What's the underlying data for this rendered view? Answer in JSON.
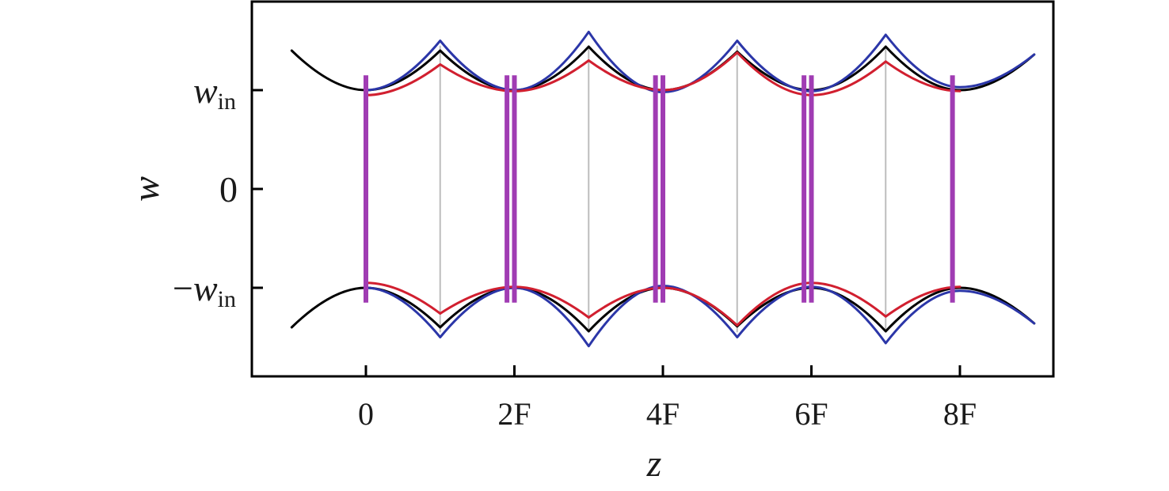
{
  "chart_data": {
    "type": "line",
    "title": "",
    "xlabel": "z",
    "ylabel": "w",
    "xlim": [
      -1.2,
      9.4
    ],
    "ylim": [
      -1.8,
      1.85
    ],
    "x_ticks": [
      {
        "value": 0,
        "label": "0"
      },
      {
        "value": 2,
        "label": "2F"
      },
      {
        "value": 4,
        "label": "4F"
      },
      {
        "value": 6,
        "label": "6F"
      },
      {
        "value": 8,
        "label": "8F"
      }
    ],
    "y_ticks": [
      {
        "value": 1,
        "main": "w",
        "sub": "in",
        "prefix": ""
      },
      {
        "value": 0,
        "main": "",
        "sub": "",
        "prefix": "0"
      },
      {
        "value": -1,
        "main": "w",
        "sub": "in",
        "prefix": "−"
      }
    ],
    "lens_positions": [
      0,
      1.9,
      2.0,
      3.9,
      4.0,
      5.9,
      6.0,
      7.9
    ],
    "lens_extent": [
      -1.15,
      1.15
    ],
    "gray_lines": [
      1,
      3,
      5,
      7
    ],
    "series": [
      {
        "color": "#000000",
        "x": [
          -1,
          0,
          1,
          2,
          3,
          4,
          5,
          6,
          7,
          8,
          9
        ],
        "y": [
          1.4,
          1.0,
          1.4,
          1.0,
          1.44,
          1.0,
          1.39,
          1.0,
          1.44,
          1.0,
          1.36
        ]
      },
      {
        "color": "#2b36a8",
        "x": [
          0,
          1,
          2,
          3,
          4,
          5,
          6,
          7,
          8,
          9
        ],
        "y": [
          1.0,
          1.5,
          1.0,
          1.59,
          0.98,
          1.5,
          0.99,
          1.56,
          1.03,
          1.36
        ]
      },
      {
        "color": "#d11f2f",
        "x": [
          0,
          1,
          2,
          3,
          4,
          5,
          6,
          7,
          8
        ],
        "y": [
          0.95,
          1.26,
          0.99,
          1.3,
          1.0,
          1.38,
          0.95,
          1.29,
          0.99
        ]
      }
    ],
    "colors": {
      "lens": "#a03cb3",
      "gray": "#bdbdbd",
      "frame": "#000000"
    }
  }
}
